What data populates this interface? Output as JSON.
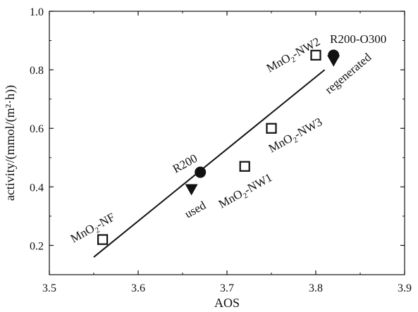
{
  "chart_data": {
    "type": "scatter",
    "xlabel": "AOS",
    "ylabel": "activity/(mmol/(m²·h))",
    "xlim": [
      3.5,
      3.9
    ],
    "ylim": [
      0.1,
      1.0
    ],
    "x_ticks": [
      3.5,
      3.6,
      3.7,
      3.8,
      3.9
    ],
    "y_ticks": [
      0.2,
      0.4,
      0.6,
      0.8,
      1.0
    ],
    "x_tick_labels": [
      "3.5",
      "3.6",
      "3.7",
      "3.8",
      "3.9"
    ],
    "y_tick_labels": [
      "0.2",
      "0.4",
      "0.6",
      "0.8",
      "1.0"
    ],
    "grid": false,
    "series": [
      {
        "marker": "open-square",
        "points": [
          {
            "x": 3.56,
            "y": 0.22
          },
          {
            "x": 3.72,
            "y": 0.47
          },
          {
            "x": 3.75,
            "y": 0.6
          },
          {
            "x": 3.8,
            "y": 0.85
          }
        ]
      },
      {
        "marker": "filled-circle",
        "points": [
          {
            "x": 3.67,
            "y": 0.45
          },
          {
            "x": 3.82,
            "y": 0.85
          }
        ]
      },
      {
        "marker": "filled-triangle-down",
        "points": [
          {
            "x": 3.66,
            "y": 0.39
          },
          {
            "x": 3.82,
            "y": 0.83
          }
        ]
      }
    ],
    "fit_line": {
      "x": [
        3.55,
        3.81
      ],
      "y": [
        0.16,
        0.8
      ]
    },
    "annotations": [
      {
        "id": "nf",
        "base": "MnO",
        "sub": "2",
        "tail": "-NF",
        "rotate": -29
      },
      {
        "id": "nw1",
        "base": "MnO",
        "sub": "2",
        "tail": "-NW1",
        "rotate": -29
      },
      {
        "id": "nw3",
        "base": "MnO",
        "sub": "2",
        "tail": "-NW3",
        "rotate": -29
      },
      {
        "id": "nw2",
        "base": "MnO",
        "sub": "2",
        "tail": "-NW2",
        "rotate": -29
      },
      {
        "id": "r200",
        "text": "R200",
        "rotate": -29
      },
      {
        "id": "used",
        "text": "used",
        "rotate": -29
      },
      {
        "id": "r200o300",
        "text": "R200-O300",
        "rotate": 0
      },
      {
        "id": "regenerated",
        "text": "regenerated",
        "rotate": -40
      }
    ]
  }
}
